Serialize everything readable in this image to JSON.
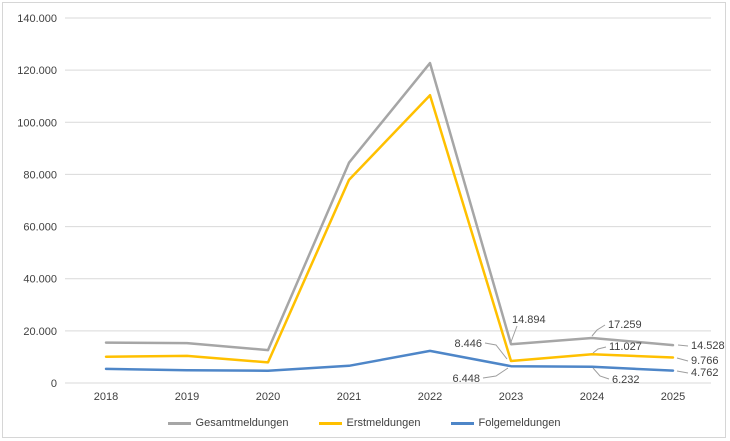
{
  "chart_data": {
    "type": "line",
    "title": "",
    "xlabel": "",
    "ylabel": "",
    "grid": true,
    "legend_position": "bottom",
    "categories": [
      "2018",
      "2019",
      "2020",
      "2021",
      "2022",
      "2023",
      "2024",
      "2025"
    ],
    "series": [
      {
        "name": "Gesamtmeldungen",
        "color": "#A6A6A6",
        "values": [
          15500,
          15300,
          12600,
          84500,
          122700,
          14894,
          17259,
          14528
        ]
      },
      {
        "name": "Erstmeldungen",
        "color": "#FFC000",
        "values": [
          10100,
          10400,
          7900,
          77900,
          110400,
          8446,
          11027,
          9766
        ]
      },
      {
        "name": "Folgemeldungen",
        "color": "#4E86C8",
        "values": [
          5400,
          4900,
          4700,
          6600,
          12300,
          6448,
          6232,
          4762
        ]
      }
    ],
    "y_axis": {
      "min": 0,
      "max": 140000,
      "step": 20000,
      "tick_labels": [
        "0",
        "20.000",
        "40.000",
        "60.000",
        "80.000",
        "100.000",
        "120.000",
        "140.000"
      ]
    },
    "x_tick_labels": [
      "2018",
      "2019",
      "2020",
      "2021",
      "2022",
      "2023",
      "2024",
      "2025"
    ],
    "data_labels": [
      {
        "series": "Gesamtmeldungen",
        "year": "2023",
        "text": "14.894"
      },
      {
        "series": "Erstmeldungen",
        "year": "2023",
        "text": "8.446"
      },
      {
        "series": "Folgemeldungen",
        "year": "2023",
        "text": "6.448"
      },
      {
        "series": "Gesamtmeldungen",
        "year": "2024",
        "text": "17.259"
      },
      {
        "series": "Erstmeldungen",
        "year": "2024",
        "text": "11.027"
      },
      {
        "series": "Folgemeldungen",
        "year": "2024",
        "text": "6.232"
      },
      {
        "series": "Gesamtmeldungen",
        "year": "2025",
        "text": "14.528"
      },
      {
        "series": "Erstmeldungen",
        "year": "2025",
        "text": "9.766"
      },
      {
        "series": "Folgemeldungen",
        "year": "2025",
        "text": "4.762"
      }
    ],
    "colors": {
      "gridline": "#D9D9D9",
      "tick_text": "#404040",
      "leader_line": "#9E9E9E",
      "frame_border": "#D6D6D6"
    }
  }
}
